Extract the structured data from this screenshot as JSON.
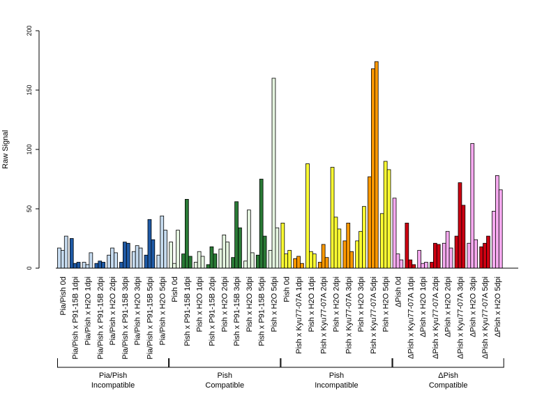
{
  "chart_data": {
    "type": "bar",
    "ylabel": "Raw Signal",
    "ylim": [
      0,
      200
    ],
    "yticks": [
      0,
      50,
      100,
      150,
      200
    ],
    "categories": [
      "Pia/Pish 0d",
      "Pia/Pish x P91-15B 1dpi",
      "Pia/Pish x H2O 1dpi",
      "Pia/Pish x P91-15B 2dpi",
      "Pia/Pish x H2O 2dpi",
      "Pia/Pish x P91-15B 3dpi",
      "Pia/Pish x H2O 3dpi",
      "Pia/Pish x P91-15B 5dpi",
      "Pia/Pish x H2O 5dpi",
      "Pish 0d",
      "Pish x P91-15B 1dpi",
      "Pish x H2O 1dpi",
      "Pish x P91-15B 2dpi",
      "Pish x H2O 2dpi",
      "Pish x P91-15B 3dpi",
      "Pish x H2O 3dpi",
      "Pish x P91-15B 5dpi",
      "Pish x H2O 5dpi",
      "Pish 0d",
      "Pish x Kyu77-07A 1dpi",
      "Pish x H2O 1dpi",
      "Pish x Kyu77-07A 2dpi",
      "Pish x H2O 2dpi",
      "Pish x Kyu77-07A 3dpi",
      "Pish x H2O 3dpi",
      "Pish x Kyu77-07A 5dpi",
      "Pish x H2O 5dpi",
      "ΔPish 0d",
      "ΔPish x Kyu77-07A 1dpi",
      "ΔPish x H2O 1dpi",
      "ΔPish x Kyu77-07A 2dpi",
      "ΔPish x H2O 2dpi",
      "ΔPish x Kyu77-07A 3dpi",
      "ΔPish x H2O 3dpi",
      "ΔPish x Kyu77-07A 5dpi",
      "ΔPish x H2O 5dpi"
    ],
    "values": [
      [
        17,
        15,
        27
      ],
      [
        25,
        4,
        5
      ],
      [
        5,
        3,
        13
      ],
      [
        4,
        6,
        5
      ],
      [
        11,
        17,
        13
      ],
      [
        5,
        22,
        21
      ],
      [
        14,
        19,
        17
      ],
      [
        11,
        41,
        24
      ],
      [
        11,
        44,
        32
      ],
      [
        22,
        4,
        32
      ],
      [
        12,
        58,
        10
      ],
      [
        5,
        14,
        10
      ],
      [
        3,
        18,
        12
      ],
      [
        16,
        28,
        22
      ],
      [
        9,
        56,
        34
      ],
      [
        6,
        49,
        13
      ],
      [
        11,
        75,
        27
      ],
      [
        15,
        160,
        34
      ],
      [
        38,
        12,
        15
      ],
      [
        8,
        10,
        4
      ],
      [
        88,
        14,
        12
      ],
      [
        5,
        20,
        9
      ],
      [
        85,
        43,
        33
      ],
      [
        23,
        38,
        14
      ],
      [
        23,
        31,
        52
      ],
      [
        77,
        168,
        174
      ],
      [
        46,
        90,
        83
      ],
      [
        59,
        12,
        7
      ],
      [
        38,
        7,
        3
      ],
      [
        15,
        4,
        5
      ],
      [
        5,
        21,
        20
      ],
      [
        21,
        31,
        17
      ],
      [
        27,
        72,
        53
      ],
      [
        21,
        105,
        24
      ],
      [
        18,
        21,
        27
      ],
      [
        48,
        78,
        66
      ]
    ],
    "bar_colors": [
      "#c6dbef",
      "#1f5aa6",
      "#c6dbef",
      "#1f5aa6",
      "#c6dbef",
      "#1f5aa6",
      "#c6dbef",
      "#1f5aa6",
      "#c6dbef",
      "#e5f5e0",
      "#2a7a36",
      "#e5f5e0",
      "#2a7a36",
      "#e5f5e0",
      "#2a7a36",
      "#e5f5e0",
      "#2a7a36",
      "#e5f5e0",
      "#ffff33",
      "#ff9900",
      "#ffff33",
      "#ff9900",
      "#ffff33",
      "#ff9900",
      "#ffff33",
      "#ff9900",
      "#ffff33",
      "#f7aaf0",
      "#cc0011",
      "#f7aaf0",
      "#cc0011",
      "#f7aaf0",
      "#cc0011",
      "#f7aaf0",
      "#cc0011",
      "#f7aaf0"
    ],
    "groups": [
      {
        "line1": "Pia/Pish",
        "line2": "Incompatible",
        "start": 0,
        "end": 8
      },
      {
        "line1": "Pish",
        "line2": "Compatible",
        "start": 9,
        "end": 17
      },
      {
        "line1": "Pish",
        "line2": "Incompatible",
        "start": 18,
        "end": 26
      },
      {
        "line1": "ΔPish",
        "line2": "Compatible",
        "start": 27,
        "end": 35
      }
    ]
  }
}
